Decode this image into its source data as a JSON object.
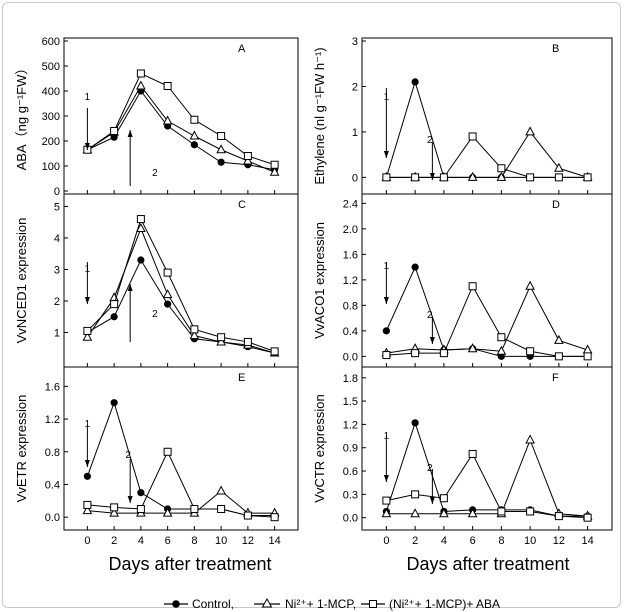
{
  "chart_data": [
    {
      "type": "line",
      "panel_label": "A",
      "ylabel": "ABA（ng g⁻¹FW）",
      "x": [
        0,
        2,
        4,
        6,
        8,
        10,
        12,
        14
      ],
      "xlim": [
        -1,
        15
      ],
      "ylim": [
        0,
        600
      ],
      "yticks": [
        0,
        100,
        200,
        300,
        400,
        500,
        600
      ],
      "series": [
        {
          "name": "Control",
          "values": [
            165,
            215,
            400,
            260,
            185,
            115,
            105,
            85
          ]
        },
        {
          "name": "Ni²⁺+ 1-MCP",
          "values": [
            165,
            235,
            420,
            280,
            220,
            165,
            120,
            75
          ]
        },
        {
          "name": "(Ni²⁺+ 1-MCP)+ ABA",
          "values": [
            165,
            240,
            470,
            420,
            285,
            220,
            140,
            105
          ]
        }
      ],
      "annotations": [
        "1",
        "2"
      ]
    },
    {
      "type": "line",
      "panel_label": "B",
      "ylabel": "Ethylene (nl g⁻¹FW h⁻¹)",
      "x": [
        0,
        2,
        4,
        6,
        8,
        10,
        12,
        14
      ],
      "xlim": [
        -1,
        15
      ],
      "ylim": [
        -0.3,
        3
      ],
      "yticks": [
        0,
        1,
        2,
        3
      ],
      "series": [
        {
          "name": "Control",
          "values": [
            0,
            2.1,
            0,
            0,
            0,
            0,
            0,
            0
          ]
        },
        {
          "name": "Ni²⁺+ 1-MCP",
          "values": [
            0,
            0,
            0,
            0,
            0,
            1.0,
            0.2,
            0
          ]
        },
        {
          "name": "(Ni²⁺+ 1-MCP)+ ABA",
          "values": [
            0,
            0,
            0,
            0.9,
            0.2,
            0,
            0,
            0
          ]
        }
      ],
      "annotations": [
        "1",
        "2"
      ]
    },
    {
      "type": "line",
      "panel_label": "C",
      "ylabel": "VvNCED1 expression",
      "x": [
        0,
        2,
        4,
        6,
        8,
        10,
        12,
        14
      ],
      "xlim": [
        -1,
        15
      ],
      "ylim": [
        0,
        5.3
      ],
      "yticks": [
        1,
        2,
        3,
        4,
        5
      ],
      "series": [
        {
          "name": "Control",
          "values": [
            1.0,
            1.5,
            3.3,
            1.9,
            0.8,
            0.7,
            0.55,
            0.35
          ]
        },
        {
          "name": "Ni²⁺+ 1-MCP",
          "values": [
            0.85,
            2.1,
            4.3,
            2.2,
            0.9,
            0.7,
            0.6,
            0.35
          ]
        },
        {
          "name": "(Ni²⁺+ 1-MCP)+ ABA",
          "values": [
            1.05,
            1.9,
            4.6,
            2.9,
            1.1,
            0.85,
            0.7,
            0.4
          ]
        }
      ],
      "annotations": [
        "1",
        "2"
      ]
    },
    {
      "type": "line",
      "panel_label": "D",
      "ylabel": "VvACO1 expression",
      "x": [
        0,
        2,
        4,
        6,
        8,
        10,
        12,
        14
      ],
      "xlim": [
        -1,
        15
      ],
      "ylim": [
        -0.12,
        2.5
      ],
      "yticks": [
        0.0,
        0.4,
        0.8,
        1.2,
        1.6,
        2.0,
        2.4
      ],
      "series": [
        {
          "name": "Control",
          "values": [
            0.4,
            1.4,
            0.1,
            0.12,
            0.0,
            0.0,
            0.0,
            0.0
          ]
        },
        {
          "name": "Ni²⁺+ 1-MCP",
          "values": [
            0.05,
            0.12,
            0.1,
            0.12,
            0.08,
            1.1,
            0.25,
            0.1
          ]
        },
        {
          "name": "(Ni²⁺+ 1-MCP)+ ABA",
          "values": [
            0.02,
            0.05,
            0.05,
            1.1,
            0.3,
            0.08,
            0.0,
            0.0
          ]
        }
      ],
      "annotations": [
        "1",
        "2"
      ]
    },
    {
      "type": "line",
      "panel_label": "E",
      "ylabel": "VvETR expression",
      "x": [
        0,
        2,
        4,
        6,
        8,
        10,
        12,
        14
      ],
      "xlim": [
        -1,
        15
      ],
      "ylim": [
        -0.12,
        1.8
      ],
      "yticks": [
        0.0,
        0.4,
        0.8,
        1.2,
        1.6
      ],
      "series": [
        {
          "name": "Control",
          "values": [
            0.5,
            1.4,
            0.3,
            0.1,
            0.1,
            0.1,
            0.02,
            0.02
          ]
        },
        {
          "name": "Ni²⁺+ 1-MCP",
          "values": [
            0.08,
            0.05,
            0.05,
            0.05,
            0.05,
            0.32,
            0.05,
            0.05
          ]
        },
        {
          "name": "(Ni²⁺+ 1-MCP)+ ABA",
          "values": [
            0.15,
            0.12,
            0.1,
            0.8,
            0.1,
            0.1,
            0.02,
            0.0
          ]
        }
      ],
      "annotations": [
        "1",
        "2"
      ]
    },
    {
      "type": "line",
      "panel_label": "F",
      "ylabel": "VvCTR expression",
      "x": [
        0,
        2,
        4,
        6,
        8,
        10,
        12,
        14
      ],
      "xlim": [
        -1,
        15
      ],
      "ylim": [
        -0.12,
        1.9
      ],
      "yticks": [
        0.0,
        0.3,
        0.6,
        0.9,
        1.2,
        1.5,
        1.8
      ],
      "series": [
        {
          "name": "Control",
          "values": [
            0.08,
            1.22,
            0.08,
            0.1,
            0.1,
            0.1,
            0.02,
            0.02
          ]
        },
        {
          "name": "Ni²⁺+ 1-MCP",
          "values": [
            0.05,
            0.05,
            0.05,
            0.05,
            0.05,
            1.0,
            0.05,
            0.02
          ]
        },
        {
          "name": "(Ni²⁺+ 1-MCP)+ ABA",
          "values": [
            0.22,
            0.3,
            0.25,
            0.82,
            0.08,
            0.08,
            0.02,
            0.0
          ]
        }
      ],
      "annotations": [
        "1",
        "2"
      ]
    }
  ],
  "figure": {
    "xlabel": "Days after treatment",
    "xticks": [
      0,
      2,
      4,
      6,
      8,
      10,
      12,
      14
    ],
    "legend": [
      {
        "label": "Control,",
        "marker": "circle-filled"
      },
      {
        "label": "Ni²⁺+ 1-MCP,",
        "marker": "triangle-open"
      },
      {
        "label": "(Ni²⁺+ 1-MCP)+ ABA",
        "marker": "square-open"
      }
    ],
    "legend_position": "bottom-center",
    "colors": {
      "line": "#000000",
      "frame": "#c8c8c8"
    }
  }
}
